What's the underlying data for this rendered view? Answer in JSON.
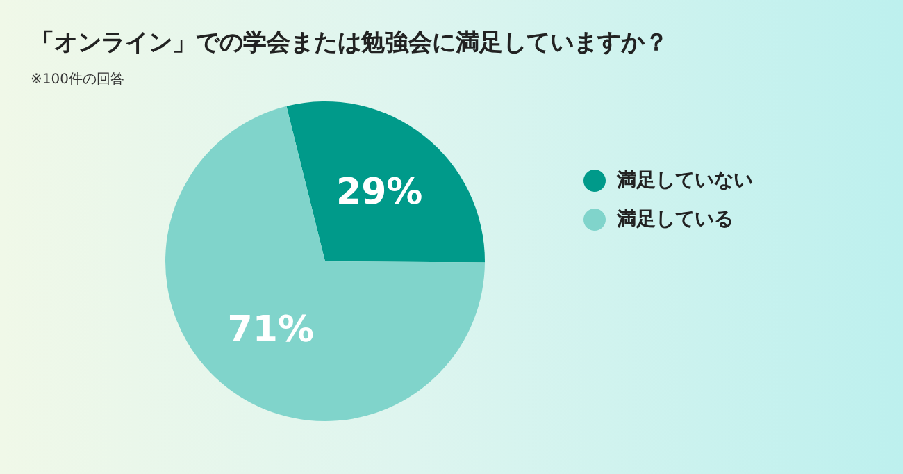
{
  "chart_data": {
    "type": "pie",
    "title": "「オンライン」での学会または勉強会に満足していますか？",
    "subtitle": "※100件の回答",
    "categories": [
      "満足していない",
      "満足している"
    ],
    "values": [
      29,
      71
    ],
    "colors": [
      "#009a8a",
      "#80d4cb"
    ],
    "value_labels": [
      "29%",
      "71%"
    ],
    "legend": "right"
  }
}
